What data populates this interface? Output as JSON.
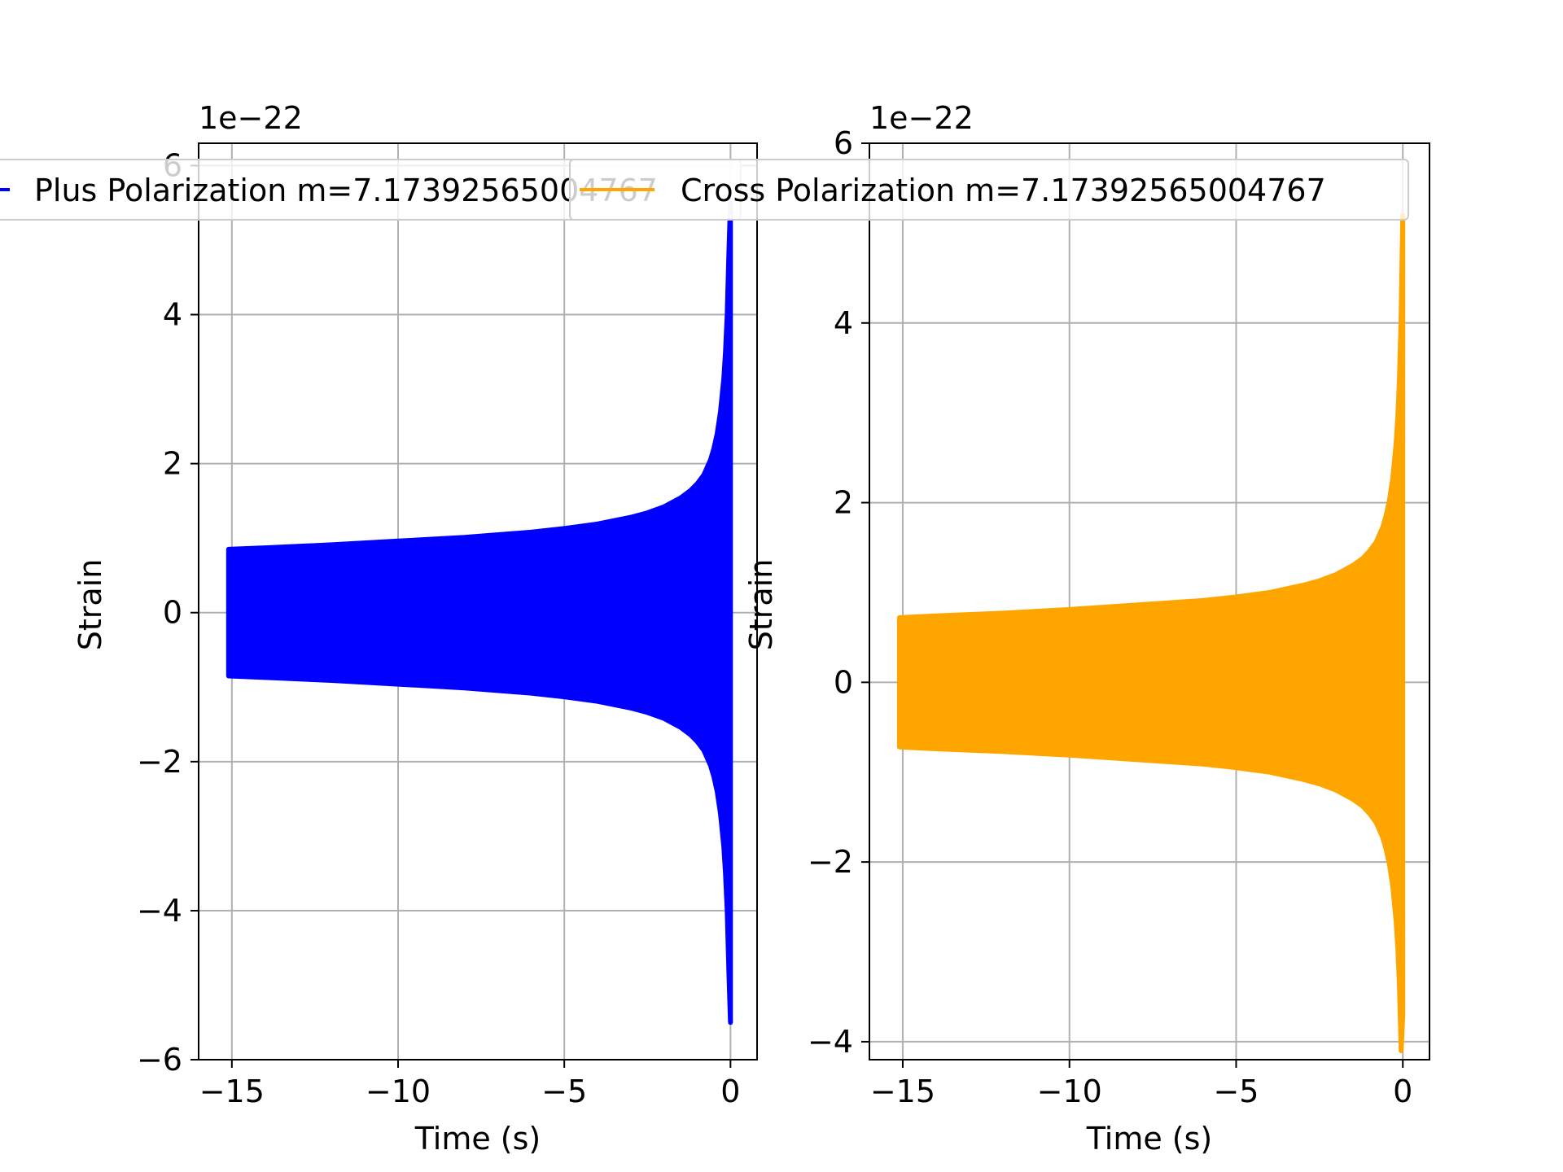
{
  "chart_data": [
    {
      "type": "line",
      "offset_label": "1e−22",
      "xlabel": "Time (s)",
      "ylabel": "Strain",
      "xlim": [
        -16,
        0.8
      ],
      "ylim": [
        -6,
        6.3
      ],
      "xticks": [
        -15,
        -10,
        -5,
        0
      ],
      "xtick_labels": [
        "−15",
        "−10",
        "−5",
        "0"
      ],
      "yticks": [
        -6,
        -4,
        -2,
        0,
        2,
        4,
        6
      ],
      "ytick_labels": [
        "−6",
        "−4",
        "−2",
        "0",
        "2",
        "4",
        "6"
      ],
      "grid": true,
      "legend_placement": "top",
      "series": [
        {
          "name": "Plus Polarization m=7.17392565004767",
          "color": "#0000ff",
          "envelope": {
            "t": [
              -15.1,
              -14,
              -12,
              -10,
              -8,
              -6,
              -5,
              -4,
              -3,
              -2.5,
              -2,
              -1.5,
              -1.2,
              -1,
              -0.8,
              -0.6,
              -0.5,
              -0.4,
              -0.3,
              -0.2,
              -0.15,
              -0.1,
              -0.05,
              0
            ],
            "amp": [
              0.85,
              0.87,
              0.91,
              0.96,
              1.01,
              1.08,
              1.13,
              1.19,
              1.28,
              1.34,
              1.42,
              1.54,
              1.64,
              1.73,
              1.85,
              2.05,
              2.2,
              2.4,
              2.7,
              3.15,
              3.5,
              4.0,
              4.8,
              5.5
            ]
          }
        }
      ]
    },
    {
      "type": "line",
      "offset_label": "1e−22",
      "xlabel": "Time (s)",
      "ylabel": "Strain",
      "xlim": [
        -16,
        0.8
      ],
      "ylim": [
        -4.2,
        6.0
      ],
      "xticks": [
        -15,
        -10,
        -5,
        0
      ],
      "xtick_labels": [
        "−15",
        "−10",
        "−5",
        "0"
      ],
      "yticks": [
        -4,
        -2,
        0,
        2,
        4,
        6
      ],
      "ytick_labels": [
        "−4",
        "−2",
        "0",
        "2",
        "4",
        "6"
      ],
      "grid": true,
      "legend_placement": "top",
      "series": [
        {
          "name": "Cross Polarization m=7.17392565004767",
          "color": "#ffa500",
          "envelope": {
            "t": [
              -15.1,
              -14,
              -12,
              -10,
              -8,
              -6,
              -5,
              -4,
              -3,
              -2.5,
              -2,
              -1.5,
              -1.2,
              -1,
              -0.8,
              -0.6,
              -0.5,
              -0.4,
              -0.3,
              -0.2,
              -0.15,
              -0.1,
              -0.05,
              0
            ],
            "amp": [
              0.72,
              0.74,
              0.77,
              0.81,
              0.86,
              0.91,
              0.95,
              1.0,
              1.08,
              1.13,
              1.2,
              1.3,
              1.38,
              1.46,
              1.56,
              1.73,
              1.86,
              2.03,
              2.28,
              2.66,
              2.96,
              3.38,
              4.1,
              5.2
            ],
            "min_end": -3.7
          }
        }
      ]
    }
  ]
}
